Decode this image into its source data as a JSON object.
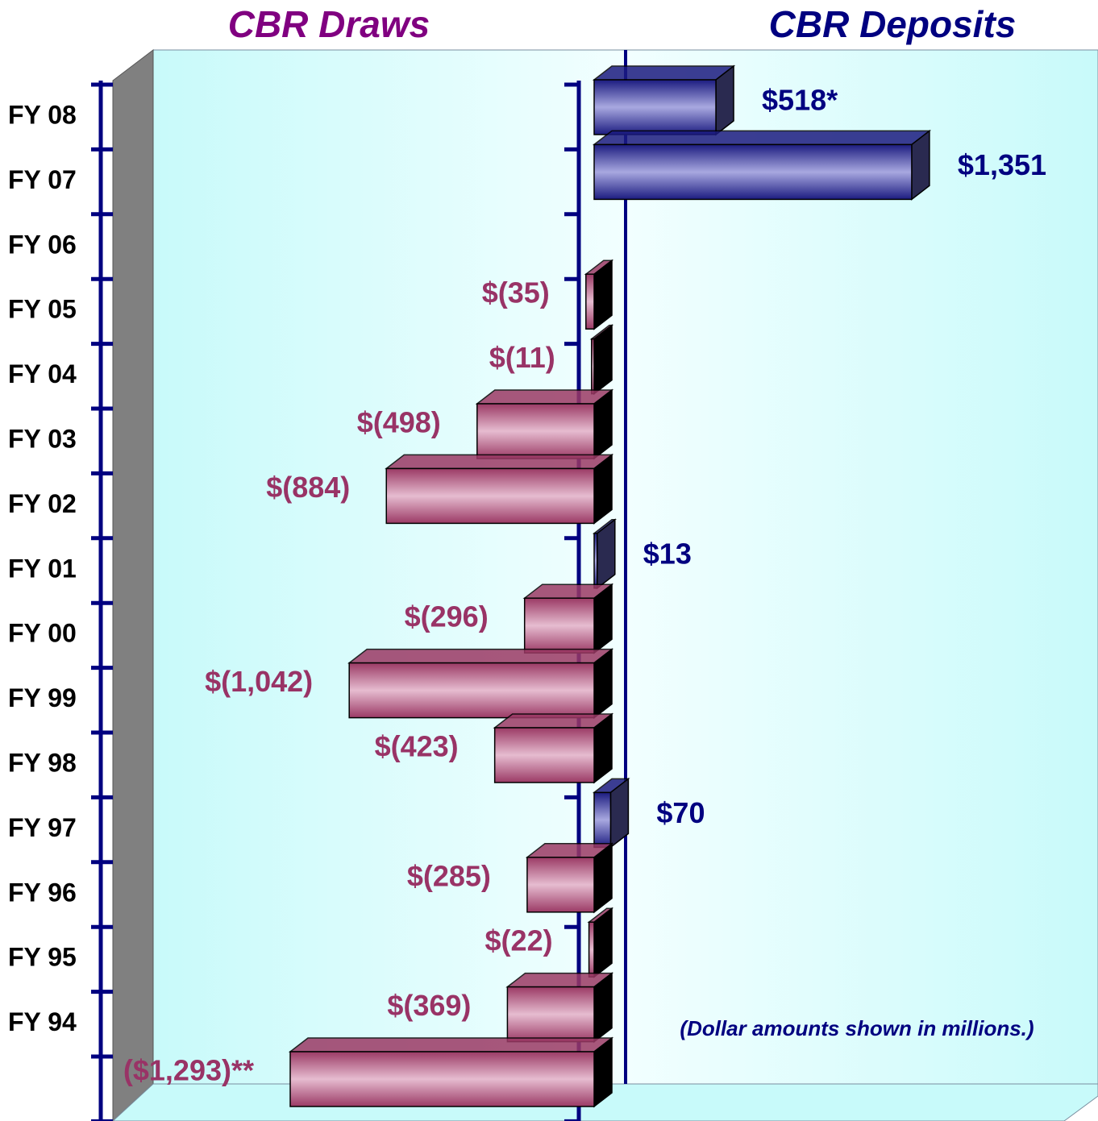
{
  "chart_data": {
    "type": "bar3d_horizontal",
    "left_title": "CBR Draws",
    "right_title": "CBR Deposits",
    "note": "(Dollar amounts shown in millions.)",
    "categories": [
      "FY 08",
      "FY 07",
      "FY 06",
      "FY 05",
      "FY 04",
      "FY 03",
      "FY 02",
      "FY 01",
      "FY 00",
      "FY 99",
      "FY 98",
      "FY 97",
      "FY 96",
      "FY 95",
      "FY 94",
      null
    ],
    "values": [
      518,
      1351,
      null,
      -35,
      -11,
      -498,
      -884,
      13,
      -296,
      -1042,
      -423,
      70,
      -285,
      -22,
      -369,
      -1293
    ],
    "value_labels": [
      "$518*",
      "$1,351",
      null,
      "$(35)",
      "$(11)",
      "$(498)",
      "$(884)",
      "$13",
      "$(296)",
      "$(1,042)",
      "$(423)",
      "$70",
      "$(285)",
      "$(22)",
      "$(369)",
      "($1,293)**"
    ],
    "positive_color": "#1c1c80",
    "negative_color": "#9b3a65",
    "positive_label_color": "#000080",
    "negative_label_color": "#993366",
    "left_title_color": "#800080",
    "right_title_color": "#000080"
  }
}
